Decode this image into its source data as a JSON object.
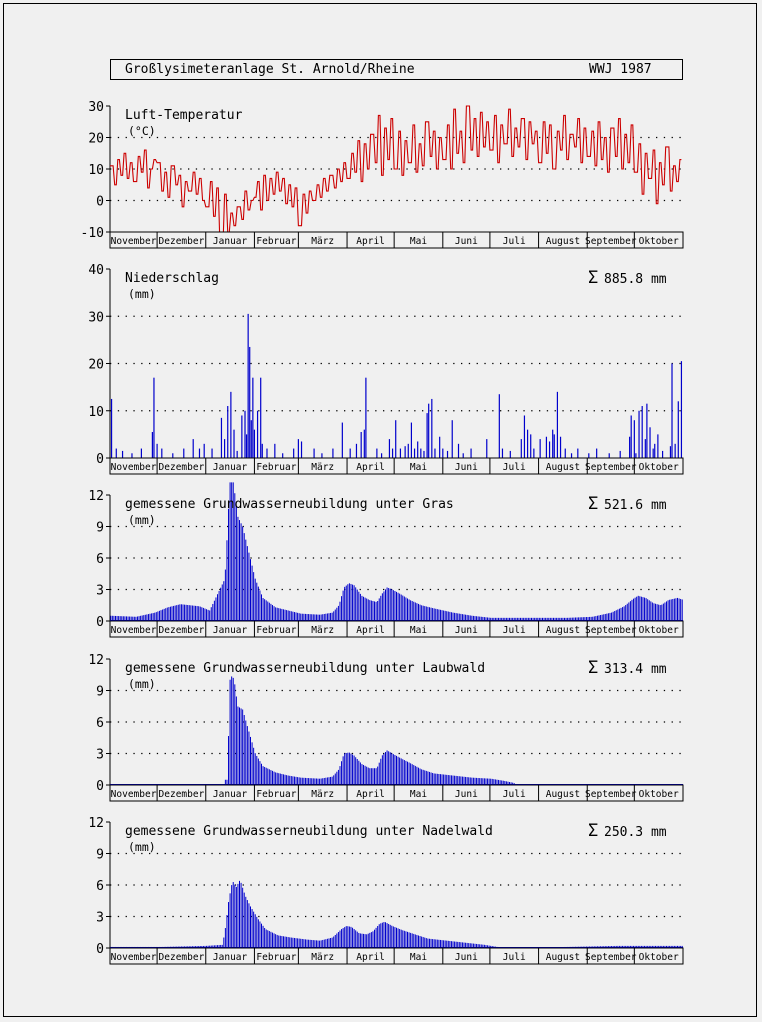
{
  "header": {
    "title": "Großlysimeteranlage St. Arnold/Rheine",
    "year": "WWJ 1987"
  },
  "months": [
    "November",
    "Dezember",
    "Januar",
    "Februar",
    "März",
    "April",
    "Mai",
    "Juni",
    "Juli",
    "August",
    "September",
    "Oktober"
  ],
  "colors": {
    "temperature": "#cc0000",
    "bars": "#0000cc",
    "axis": "#000000",
    "background": "#f0f0f0"
  },
  "chart_data": [
    {
      "id": "temperature",
      "type": "line",
      "title": "Luft-Temperatur",
      "unit": "(°C)",
      "sum": "",
      "ylim": [
        -10,
        30
      ],
      "yticks": [
        -10,
        0,
        10,
        20,
        30
      ],
      "dotted_gridlines": [
        0,
        10,
        20
      ],
      "monthly_pattern": [
        {
          "month": "November",
          "values": [
            11,
            5,
            13,
            8,
            15,
            7,
            12,
            6,
            14,
            9,
            16,
            4,
            10,
            13
          ]
        },
        {
          "month": "Dezember",
          "values": [
            12,
            3,
            9,
            1,
            11,
            5,
            8,
            -2,
            6,
            3,
            9,
            2,
            7,
            0
          ]
        },
        {
          "month": "Januar",
          "values": [
            -2,
            6,
            -5,
            4,
            -14,
            2,
            -10,
            -4,
            -8,
            -2,
            -6,
            3,
            -3,
            0
          ]
        },
        {
          "month": "Februar",
          "values": [
            1,
            6,
            -3,
            8,
            0,
            7,
            2,
            9,
            3,
            7,
            -1,
            5,
            -2,
            4
          ]
        },
        {
          "month": "März",
          "values": [
            -8,
            2,
            -4,
            3,
            0,
            5,
            1,
            7,
            3,
            8,
            4,
            10,
            6,
            12
          ]
        },
        {
          "month": "April",
          "values": [
            7,
            15,
            9,
            19,
            6,
            18,
            10,
            21,
            12,
            27,
            8,
            23,
            13,
            26
          ]
        },
        {
          "month": "Mai",
          "values": [
            10,
            22,
            8,
            19,
            12,
            24,
            9,
            18,
            11,
            25,
            14,
            22,
            10,
            20
          ]
        },
        {
          "month": "Juni",
          "values": [
            13,
            24,
            10,
            29,
            15,
            22,
            12,
            30,
            16,
            26,
            14,
            28,
            17,
            25
          ]
        },
        {
          "month": "Juli",
          "values": [
            16,
            27,
            12,
            24,
            18,
            29,
            14,
            23,
            17,
            26,
            13,
            25,
            18,
            22
          ]
        },
        {
          "month": "August",
          "values": [
            12,
            25,
            15,
            24,
            10,
            22,
            16,
            27,
            13,
            21,
            17,
            26,
            12,
            23
          ]
        },
        {
          "month": "September",
          "values": [
            14,
            22,
            11,
            25,
            13,
            20,
            9,
            23,
            14,
            26,
            10,
            21,
            12,
            24
          ]
        },
        {
          "month": "Oktober",
          "values": [
            9,
            18,
            2,
            15,
            7,
            16,
            -1,
            12,
            5,
            17,
            3,
            11,
            6,
            13
          ]
        }
      ]
    },
    {
      "id": "precipitation",
      "type": "bar",
      "title": "Niederschlag",
      "unit": "(mm)",
      "sum": "885.8 mm",
      "ylim": [
        0,
        40
      ],
      "yticks": [
        0,
        10,
        20,
        30,
        40
      ],
      "dotted_gridlines": [
        10,
        20,
        30
      ],
      "events": [
        {
          "day": 1,
          "value": 12.5
        },
        {
          "day": 4,
          "value": 2
        },
        {
          "day": 8,
          "value": 1.5
        },
        {
          "day": 14,
          "value": 1
        },
        {
          "day": 20,
          "value": 2
        },
        {
          "day": 27,
          "value": 5.5
        },
        {
          "day": 28,
          "value": 17
        },
        {
          "day": 30,
          "value": 3
        },
        {
          "day": 33,
          "value": 2
        },
        {
          "day": 40,
          "value": 1
        },
        {
          "day": 47,
          "value": 2
        },
        {
          "day": 53,
          "value": 4
        },
        {
          "day": 57,
          "value": 2
        },
        {
          "day": 60,
          "value": 3
        },
        {
          "day": 65,
          "value": 2
        },
        {
          "day": 71,
          "value": 8.5
        },
        {
          "day": 73,
          "value": 4
        },
        {
          "day": 75,
          "value": 11
        },
        {
          "day": 77,
          "value": 14
        },
        {
          "day": 79,
          "value": 6
        },
        {
          "day": 81,
          "value": 1.5
        },
        {
          "day": 84,
          "value": 9
        },
        {
          "day": 86,
          "value": 10
        },
        {
          "day": 87,
          "value": 5
        },
        {
          "day": 88,
          "value": 30.5
        },
        {
          "day": 89,
          "value": 23.5
        },
        {
          "day": 90,
          "value": 8
        },
        {
          "day": 91,
          "value": 17
        },
        {
          "day": 92,
          "value": 6
        },
        {
          "day": 94,
          "value": 10
        },
        {
          "day": 96,
          "value": 17
        },
        {
          "day": 97,
          "value": 3
        },
        {
          "day": 100,
          "value": 2
        },
        {
          "day": 105,
          "value": 3
        },
        {
          "day": 110,
          "value": 1
        },
        {
          "day": 117,
          "value": 2
        },
        {
          "day": 120,
          "value": 4
        },
        {
          "day": 122,
          "value": 3.5
        },
        {
          "day": 130,
          "value": 2
        },
        {
          "day": 135,
          "value": 1
        },
        {
          "day": 142,
          "value": 2
        },
        {
          "day": 148,
          "value": 7.5
        },
        {
          "day": 153,
          "value": 2
        },
        {
          "day": 157,
          "value": 3
        },
        {
          "day": 160,
          "value": 5.5
        },
        {
          "day": 162,
          "value": 6
        },
        {
          "day": 163,
          "value": 17
        },
        {
          "day": 170,
          "value": 2
        },
        {
          "day": 173,
          "value": 1
        },
        {
          "day": 178,
          "value": 4
        },
        {
          "day": 180,
          "value": 2
        },
        {
          "day": 182,
          "value": 8
        },
        {
          "day": 185,
          "value": 2
        },
        {
          "day": 188,
          "value": 2.5
        },
        {
          "day": 190,
          "value": 3
        },
        {
          "day": 192,
          "value": 7.5
        },
        {
          "day": 194,
          "value": 2
        },
        {
          "day": 196,
          "value": 3.5
        },
        {
          "day": 198,
          "value": 2
        },
        {
          "day": 200,
          "value": 1.5
        },
        {
          "day": 202,
          "value": 9.5
        },
        {
          "day": 203,
          "value": 11.5
        },
        {
          "day": 205,
          "value": 12.5
        },
        {
          "day": 207,
          "value": 2
        },
        {
          "day": 210,
          "value": 4.5
        },
        {
          "day": 212,
          "value": 2
        },
        {
          "day": 215,
          "value": 1.5
        },
        {
          "day": 218,
          "value": 8
        },
        {
          "day": 222,
          "value": 3
        },
        {
          "day": 225,
          "value": 1
        },
        {
          "day": 230,
          "value": 2
        },
        {
          "day": 240,
          "value": 4
        },
        {
          "day": 248,
          "value": 13.5
        },
        {
          "day": 250,
          "value": 2
        },
        {
          "day": 255,
          "value": 1.5
        },
        {
          "day": 262,
          "value": 4
        },
        {
          "day": 264,
          "value": 9
        },
        {
          "day": 266,
          "value": 6
        },
        {
          "day": 268,
          "value": 5
        },
        {
          "day": 270,
          "value": 2
        },
        {
          "day": 274,
          "value": 4
        },
        {
          "day": 278,
          "value": 4.5
        },
        {
          "day": 280,
          "value": 3.5
        },
        {
          "day": 282,
          "value": 6
        },
        {
          "day": 283,
          "value": 5
        },
        {
          "day": 285,
          "value": 14
        },
        {
          "day": 287,
          "value": 4.5
        },
        {
          "day": 290,
          "value": 2
        },
        {
          "day": 294,
          "value": 1
        },
        {
          "day": 298,
          "value": 2
        },
        {
          "day": 305,
          "value": 1
        },
        {
          "day": 310,
          "value": 2
        },
        {
          "day": 318,
          "value": 1
        },
        {
          "day": 325,
          "value": 1.5
        },
        {
          "day": 331,
          "value": 4.5
        },
        {
          "day": 332,
          "value": 9
        },
        {
          "day": 334,
          "value": 8
        },
        {
          "day": 335,
          "value": 1
        },
        {
          "day": 337,
          "value": 10
        },
        {
          "day": 339,
          "value": 11
        },
        {
          "day": 341,
          "value": 4
        },
        {
          "day": 342,
          "value": 11.5
        },
        {
          "day": 344,
          "value": 6.5
        },
        {
          "day": 346,
          "value": 2
        },
        {
          "day": 347,
          "value": 3
        },
        {
          "day": 349,
          "value": 5
        },
        {
          "day": 352,
          "value": 1.5
        },
        {
          "day": 357,
          "value": 2.5
        },
        {
          "day": 358,
          "value": 20
        },
        {
          "day": 360,
          "value": 3
        },
        {
          "day": 362,
          "value": 12
        },
        {
          "day": 364,
          "value": 20.5
        }
      ]
    },
    {
      "id": "recharge-gras",
      "type": "bar",
      "title": "gemessene Grundwasserneubildung unter Gras",
      "unit": "(mm)",
      "sum": "521.6 mm",
      "ylim": [
        0,
        12
      ],
      "yticks": [
        0,
        3,
        6,
        9,
        12
      ],
      "dotted_gridlines": [
        3,
        6,
        9
      ],
      "envelope": [
        [
          0,
          0.5
        ],
        [
          20,
          0.4
        ],
        [
          35,
          0.8
        ],
        [
          45,
          1.3
        ],
        [
          55,
          1.6
        ],
        [
          70,
          1.4
        ],
        [
          78,
          1.0
        ],
        [
          86,
          3.0
        ],
        [
          90,
          4.0
        ],
        [
          92,
          8.5
        ],
        [
          94,
          13.5
        ],
        [
          96,
          14
        ],
        [
          98,
          12
        ],
        [
          100,
          10
        ],
        [
          104,
          9
        ],
        [
          108,
          7
        ],
        [
          114,
          4
        ],
        [
          120,
          2.2
        ],
        [
          130,
          1.3
        ],
        [
          140,
          1.0
        ],
        [
          150,
          0.7
        ],
        [
          165,
          0.6
        ],
        [
          175,
          0.8
        ],
        [
          180,
          1.5
        ],
        [
          184,
          3.2
        ],
        [
          188,
          3.6
        ],
        [
          192,
          3.4
        ],
        [
          198,
          2.4
        ],
        [
          204,
          2.0
        ],
        [
          210,
          1.8
        ],
        [
          214,
          2.6
        ],
        [
          218,
          3.2
        ],
        [
          222,
          3.0
        ],
        [
          228,
          2.6
        ],
        [
          236,
          2.0
        ],
        [
          245,
          1.5
        ],
        [
          255,
          1.2
        ],
        [
          270,
          0.8
        ],
        [
          285,
          0.5
        ],
        [
          300,
          0.3
        ],
        [
          320,
          0.3
        ],
        [
          340,
          0.3
        ],
        [
          360,
          0.3
        ],
        [
          380,
          0.4
        ],
        [
          395,
          0.8
        ],
        [
          405,
          1.4
        ],
        [
          412,
          2.1
        ],
        [
          416,
          2.4
        ],
        [
          422,
          2.2
        ],
        [
          428,
          1.7
        ],
        [
          434,
          1.5
        ],
        [
          440,
          2.0
        ],
        [
          447,
          2.2
        ],
        [
          452,
          2.0
        ]
      ]
    },
    {
      "id": "recharge-laubwald",
      "type": "bar",
      "title": "gemessene Grundwasserneubildung unter Laubwald",
      "unit": "(mm)",
      "sum": "313.4 mm",
      "ylim": [
        0,
        12
      ],
      "yticks": [
        0,
        3,
        6,
        9,
        12
      ],
      "dotted_gridlines": [
        3,
        6,
        9
      ],
      "envelope": [
        [
          0,
          0
        ],
        [
          89,
          0
        ],
        [
          90,
          0.5
        ],
        [
          92,
          0.5
        ],
        [
          94,
          10
        ],
        [
          96,
          10.5
        ],
        [
          98,
          9.5
        ],
        [
          100,
          7.5
        ],
        [
          104,
          7.2
        ],
        [
          108,
          5.5
        ],
        [
          114,
          3
        ],
        [
          120,
          1.8
        ],
        [
          130,
          1.2
        ],
        [
          140,
          0.9
        ],
        [
          150,
          0.7
        ],
        [
          165,
          0.6
        ],
        [
          175,
          0.8
        ],
        [
          180,
          1.5
        ],
        [
          184,
          3.0
        ],
        [
          188,
          3.1
        ],
        [
          192,
          2.8
        ],
        [
          198,
          2.0
        ],
        [
          204,
          1.6
        ],
        [
          210,
          1.6
        ],
        [
          214,
          2.8
        ],
        [
          218,
          3.3
        ],
        [
          222,
          3.0
        ],
        [
          228,
          2.6
        ],
        [
          236,
          2.1
        ],
        [
          245,
          1.5
        ],
        [
          255,
          1.1
        ],
        [
          270,
          0.9
        ],
        [
          285,
          0.7
        ],
        [
          300,
          0.6
        ],
        [
          310,
          0.4
        ],
        [
          318,
          0.2
        ],
        [
          320,
          0
        ]
      ]
    },
    {
      "id": "recharge-nadelwald",
      "type": "bar",
      "title": "gemessene Grundwasserneubildung unter Nadelwald",
      "unit": "(mm)",
      "sum": "250.3 mm",
      "ylim": [
        0,
        12
      ],
      "yticks": [
        0,
        3,
        6,
        9,
        12
      ],
      "dotted_gridlines": [
        3,
        6,
        9
      ],
      "envelope": [
        [
          0,
          0.1
        ],
        [
          40,
          0.1
        ],
        [
          75,
          0.2
        ],
        [
          88,
          0.3
        ],
        [
          90,
          1.5
        ],
        [
          93,
          4.5
        ],
        [
          96,
          6.4
        ],
        [
          99,
          5.8
        ],
        [
          102,
          6.5
        ],
        [
          106,
          5.0
        ],
        [
          110,
          4.0
        ],
        [
          116,
          2.8
        ],
        [
          122,
          1.8
        ],
        [
          132,
          1.2
        ],
        [
          142,
          1.0
        ],
        [
          155,
          0.8
        ],
        [
          165,
          0.7
        ],
        [
          175,
          1.0
        ],
        [
          182,
          1.8
        ],
        [
          186,
          2.1
        ],
        [
          190,
          2.0
        ],
        [
          196,
          1.4
        ],
        [
          202,
          1.3
        ],
        [
          207,
          1.6
        ],
        [
          212,
          2.3
        ],
        [
          216,
          2.5
        ],
        [
          222,
          2.1
        ],
        [
          230,
          1.7
        ],
        [
          240,
          1.3
        ],
        [
          250,
          0.9
        ],
        [
          265,
          0.7
        ],
        [
          280,
          0.5
        ],
        [
          295,
          0.3
        ],
        [
          305,
          0.1
        ],
        [
          320,
          0.05
        ],
        [
          360,
          0.1
        ],
        [
          400,
          0.2
        ],
        [
          452,
          0.2
        ]
      ]
    }
  ]
}
